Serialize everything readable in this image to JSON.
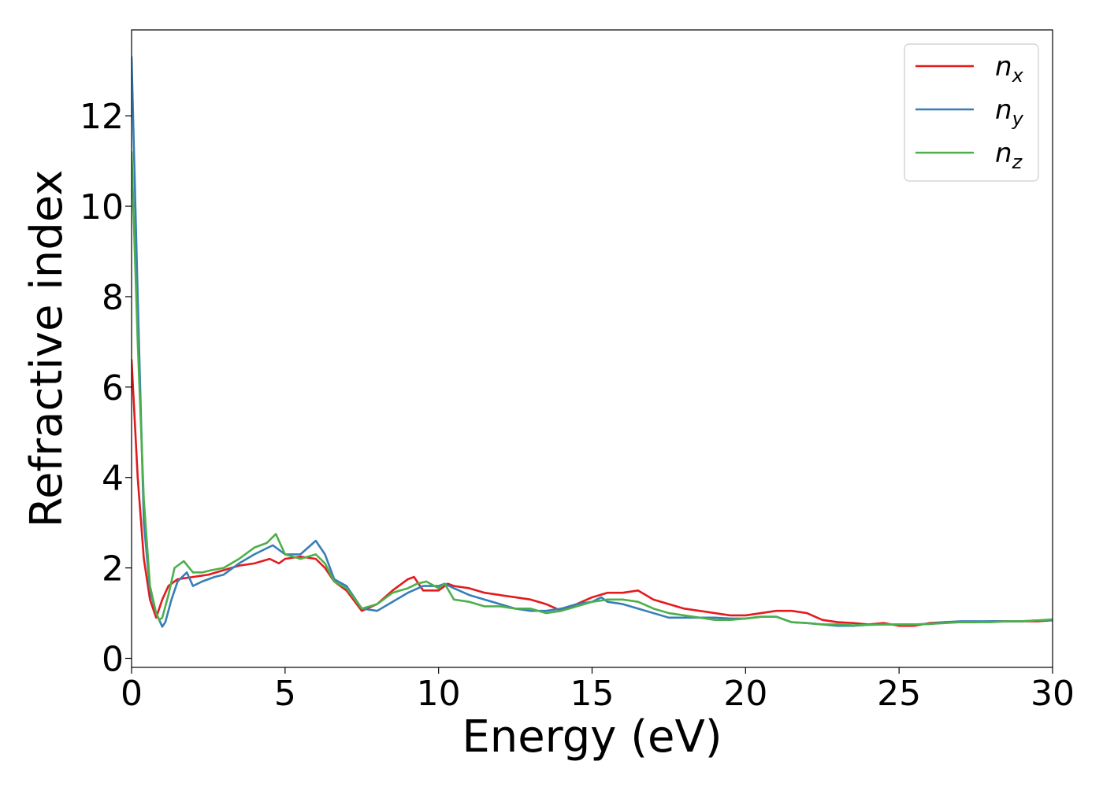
{
  "chart_data": {
    "type": "line",
    "title": "",
    "xlabel": "Energy (eV)",
    "ylabel": "Refractive index",
    "xlim": [
      0,
      30
    ],
    "ylim": [
      -0.2,
      13.9
    ],
    "xticks": [
      0,
      5,
      10,
      15,
      20,
      25,
      30
    ],
    "xtick_labels": [
      "0",
      "5",
      "10",
      "15",
      "20",
      "25",
      "30"
    ],
    "yticks": [
      0,
      2,
      4,
      6,
      8,
      10,
      12
    ],
    "ytick_labels": [
      "0",
      "2",
      "4",
      "6",
      "8",
      "10",
      "12"
    ],
    "grid": false,
    "legend_position": "top-right",
    "series": [
      {
        "name": "n_x",
        "legend_base": "n",
        "legend_sub": "x",
        "color": "#e41a1c",
        "x": [
          0,
          0.2,
          0.4,
          0.6,
          0.8,
          1.0,
          1.2,
          1.5,
          2.0,
          2.5,
          3.0,
          3.5,
          4.0,
          4.5,
          4.8,
          5.0,
          5.5,
          6.0,
          6.3,
          6.6,
          7.0,
          7.5,
          8.0,
          8.5,
          9.0,
          9.2,
          9.5,
          10.0,
          10.3,
          10.5,
          11.0,
          11.5,
          12.0,
          12.5,
          13.0,
          13.5,
          14.0,
          14.5,
          15.0,
          15.5,
          16.0,
          16.5,
          17.0,
          17.5,
          18.0,
          18.5,
          19.0,
          19.5,
          20.0,
          20.5,
          21.0,
          21.5,
          22.0,
          22.5,
          23.0,
          23.5,
          24.0,
          24.5,
          25.0,
          25.5,
          26.0,
          26.5,
          27.0,
          27.5,
          28.0,
          28.5,
          29.0,
          29.5,
          30.0
        ],
        "y": [
          6.6,
          4.0,
          2.2,
          1.3,
          0.9,
          1.3,
          1.6,
          1.75,
          1.8,
          1.85,
          1.95,
          2.05,
          2.1,
          2.2,
          2.1,
          2.2,
          2.25,
          2.2,
          2.0,
          1.7,
          1.5,
          1.05,
          1.2,
          1.5,
          1.75,
          1.8,
          1.5,
          1.5,
          1.65,
          1.6,
          1.55,
          1.45,
          1.4,
          1.35,
          1.3,
          1.2,
          1.05,
          1.2,
          1.35,
          1.45,
          1.45,
          1.5,
          1.3,
          1.2,
          1.1,
          1.05,
          1.0,
          0.95,
          0.95,
          1.0,
          1.05,
          1.05,
          1.0,
          0.85,
          0.8,
          0.78,
          0.75,
          0.78,
          0.72,
          0.72,
          0.78,
          0.8,
          0.8,
          0.8,
          0.82,
          0.82,
          0.82,
          0.82,
          0.84
        ]
      },
      {
        "name": "n_y",
        "legend_base": "n",
        "legend_sub": "y",
        "color": "#377eb8",
        "x": [
          0,
          0.2,
          0.4,
          0.6,
          0.8,
          1.0,
          1.1,
          1.3,
          1.5,
          1.8,
          2.0,
          2.3,
          2.7,
          3.0,
          3.5,
          4.0,
          4.6,
          5.0,
          5.5,
          6.0,
          6.3,
          6.6,
          7.0,
          7.5,
          8.0,
          8.5,
          9.0,
          9.5,
          10.0,
          10.2,
          10.5,
          11.0,
          11.5,
          12.0,
          12.5,
          13.0,
          13.5,
          14.0,
          14.5,
          15.0,
          15.3,
          15.5,
          16.0,
          16.5,
          17.0,
          17.5,
          18.0,
          18.5,
          19.0,
          19.5,
          20.0,
          20.5,
          21.0,
          21.5,
          22.0,
          22.5,
          23.0,
          23.5,
          24.0,
          24.5,
          25.0,
          25.5,
          26.0,
          26.5,
          27.0,
          27.5,
          28.0,
          28.5,
          29.0,
          29.5,
          30.0
        ],
        "y": [
          13.3,
          8.0,
          3.0,
          1.5,
          1.0,
          0.7,
          0.8,
          1.3,
          1.7,
          1.9,
          1.6,
          1.7,
          1.8,
          1.85,
          2.1,
          2.3,
          2.5,
          2.3,
          2.3,
          2.6,
          2.3,
          1.75,
          1.6,
          1.1,
          1.05,
          1.25,
          1.45,
          1.6,
          1.6,
          1.65,
          1.55,
          1.4,
          1.3,
          1.2,
          1.1,
          1.05,
          1.05,
          1.1,
          1.2,
          1.25,
          1.35,
          1.25,
          1.2,
          1.1,
          1.0,
          0.9,
          0.9,
          0.9,
          0.9,
          0.88,
          0.88,
          0.92,
          0.92,
          0.8,
          0.78,
          0.75,
          0.72,
          0.72,
          0.74,
          0.75,
          0.75,
          0.75,
          0.76,
          0.8,
          0.82,
          0.82,
          0.82,
          0.82,
          0.82,
          0.84,
          0.84
        ]
      },
      {
        "name": "n_z",
        "legend_base": "n",
        "legend_sub": "z",
        "color": "#4daf4a",
        "x": [
          0,
          0.2,
          0.4,
          0.6,
          0.8,
          0.9,
          1.0,
          1.2,
          1.4,
          1.7,
          2.0,
          2.3,
          2.6,
          3.0,
          3.5,
          4.0,
          4.4,
          4.7,
          5.0,
          5.5,
          6.0,
          6.3,
          6.6,
          7.0,
          7.5,
          8.0,
          8.5,
          9.0,
          9.3,
          9.6,
          10.0,
          10.2,
          10.5,
          11.0,
          11.5,
          12.0,
          12.5,
          13.0,
          13.5,
          14.0,
          14.5,
          15.0,
          15.5,
          16.0,
          16.5,
          17.0,
          17.5,
          18.0,
          18.5,
          19.0,
          19.5,
          20.0,
          20.5,
          21.0,
          21.5,
          22.0,
          22.5,
          23.0,
          23.5,
          24.0,
          24.5,
          25.0,
          25.5,
          26.0,
          26.5,
          27.0,
          27.5,
          28.0,
          28.5,
          29.0,
          29.5,
          30.0
        ],
        "y": [
          11.2,
          7.0,
          3.5,
          1.6,
          1.0,
          0.85,
          0.9,
          1.4,
          2.0,
          2.15,
          1.9,
          1.9,
          1.95,
          2.0,
          2.2,
          2.45,
          2.55,
          2.75,
          2.3,
          2.2,
          2.3,
          2.1,
          1.7,
          1.55,
          1.1,
          1.2,
          1.45,
          1.55,
          1.65,
          1.7,
          1.55,
          1.65,
          1.3,
          1.25,
          1.15,
          1.15,
          1.1,
          1.1,
          1.0,
          1.05,
          1.15,
          1.25,
          1.3,
          1.3,
          1.25,
          1.1,
          1.0,
          0.95,
          0.9,
          0.85,
          0.85,
          0.88,
          0.92,
          0.92,
          0.8,
          0.78,
          0.75,
          0.75,
          0.73,
          0.74,
          0.75,
          0.75,
          0.75,
          0.76,
          0.78,
          0.8,
          0.8,
          0.8,
          0.82,
          0.82,
          0.84,
          0.86
        ]
      }
    ]
  }
}
